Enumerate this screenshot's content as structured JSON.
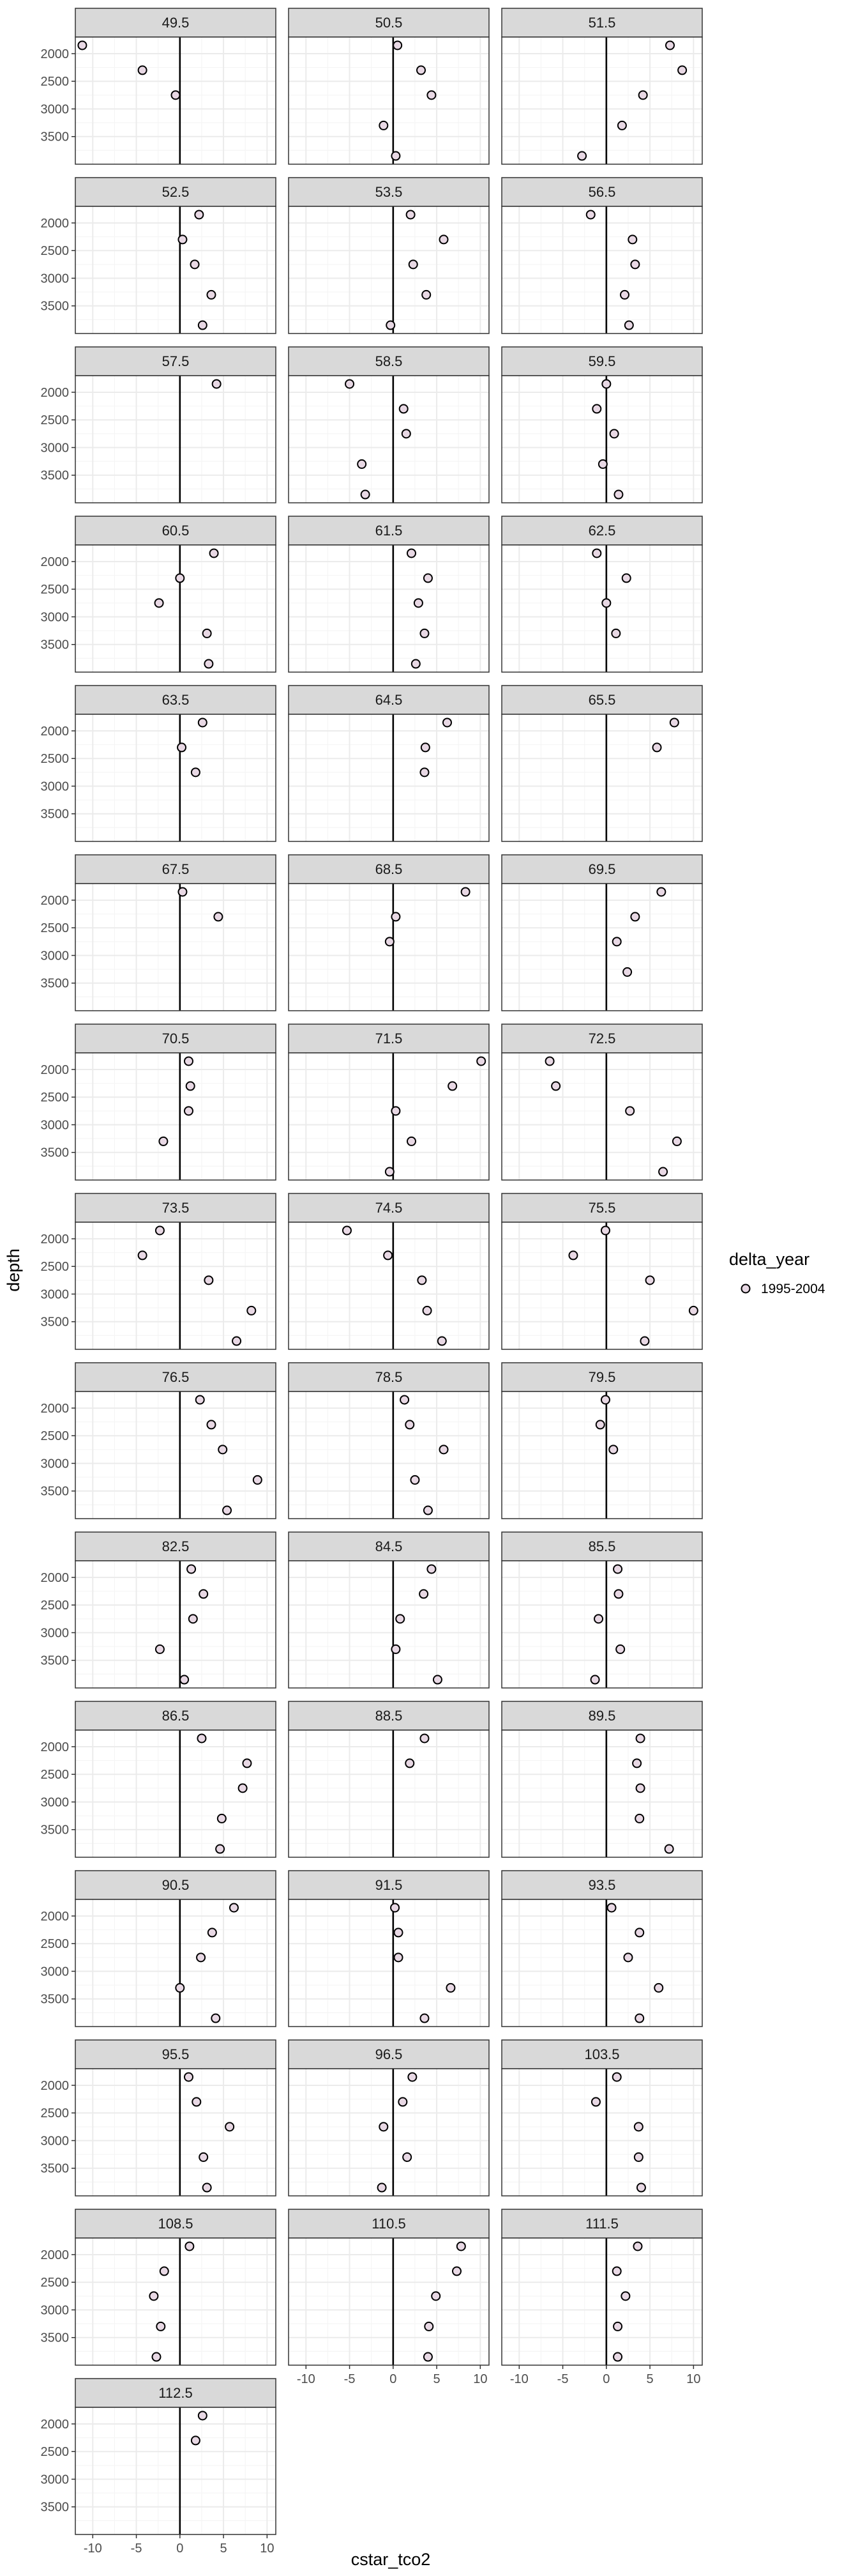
{
  "chart_data": {
    "type": "scatter",
    "facet_by": "lat",
    "xlabel": "cstar_tco2",
    "ylabel": "depth",
    "xlim": [
      -12,
      11
    ],
    "ylim": [
      4000,
      1700
    ],
    "x_ticks": [
      -10,
      -5,
      0,
      5,
      10
    ],
    "y_ticks": [
      2000,
      2500,
      3000,
      3500
    ],
    "vline_x": 0,
    "grid": true,
    "legend": {
      "title": "delta_year",
      "entries": [
        "1995-2004"
      ],
      "placement": "right"
    },
    "colors": {
      "point_edge": "#000000",
      "point_fill": "#e8d8e4",
      "strip_bg": "#d9d9d9",
      "panel_border": "#333333",
      "grid_major": "#ebebeb",
      "grid_minor": "#f5f5f5"
    },
    "panels": [
      {
        "label": "49.5",
        "points": [
          [
            -11.2,
            1850
          ],
          [
            -4.3,
            2300
          ],
          [
            -0.5,
            2750
          ]
        ]
      },
      {
        "label": "50.5",
        "points": [
          [
            0.5,
            1850
          ],
          [
            3.2,
            2300
          ],
          [
            4.4,
            2750
          ],
          [
            -1.1,
            3300
          ],
          [
            0.3,
            3850
          ]
        ]
      },
      {
        "label": "51.5",
        "points": [
          [
            7.3,
            1850
          ],
          [
            8.7,
            2300
          ],
          [
            4.2,
            2750
          ],
          [
            1.8,
            3300
          ],
          [
            -2.8,
            3850
          ]
        ]
      },
      {
        "label": "52.5",
        "points": [
          [
            2.2,
            1850
          ],
          [
            0.3,
            2300
          ],
          [
            1.7,
            2750
          ],
          [
            3.6,
            3300
          ],
          [
            2.6,
            3850
          ]
        ]
      },
      {
        "label": "53.5",
        "points": [
          [
            2.0,
            1850
          ],
          [
            5.8,
            2300
          ],
          [
            2.3,
            2750
          ],
          [
            3.8,
            3300
          ],
          [
            -0.3,
            3850
          ]
        ]
      },
      {
        "label": "56.5",
        "points": [
          [
            -1.8,
            1850
          ],
          [
            3.0,
            2300
          ],
          [
            3.3,
            2750
          ],
          [
            2.1,
            3300
          ],
          [
            2.6,
            3850
          ]
        ]
      },
      {
        "label": "57.5",
        "points": [
          [
            4.2,
            1850
          ]
        ]
      },
      {
        "label": "58.5",
        "points": [
          [
            -5.0,
            1850
          ],
          [
            1.2,
            2300
          ],
          [
            1.5,
            2750
          ],
          [
            -3.6,
            3300
          ],
          [
            -3.2,
            3850
          ]
        ]
      },
      {
        "label": "59.5",
        "points": [
          [
            0.0,
            1850
          ],
          [
            -1.1,
            2300
          ],
          [
            0.9,
            2750
          ],
          [
            -0.4,
            3300
          ],
          [
            1.4,
            3850
          ]
        ]
      },
      {
        "label": "60.5",
        "points": [
          [
            3.9,
            1850
          ],
          [
            0.0,
            2300
          ],
          [
            -2.4,
            2750
          ],
          [
            3.1,
            3300
          ],
          [
            3.3,
            3850
          ]
        ]
      },
      {
        "label": "61.5",
        "points": [
          [
            2.1,
            1850
          ],
          [
            4.0,
            2300
          ],
          [
            2.9,
            2750
          ],
          [
            3.6,
            3300
          ],
          [
            2.6,
            3850
          ]
        ]
      },
      {
        "label": "62.5",
        "points": [
          [
            -1.1,
            1850
          ],
          [
            2.3,
            2300
          ],
          [
            0.0,
            2750
          ],
          [
            1.1,
            3300
          ]
        ]
      },
      {
        "label": "63.5",
        "points": [
          [
            2.6,
            1850
          ],
          [
            0.2,
            2300
          ],
          [
            1.8,
            2750
          ]
        ]
      },
      {
        "label": "64.5",
        "points": [
          [
            6.2,
            1850
          ],
          [
            3.7,
            2300
          ],
          [
            3.6,
            2750
          ]
        ]
      },
      {
        "label": "65.5",
        "points": [
          [
            7.8,
            1850
          ],
          [
            5.8,
            2300
          ]
        ]
      },
      {
        "label": "67.5",
        "points": [
          [
            0.3,
            1850
          ],
          [
            4.4,
            2300
          ]
        ]
      },
      {
        "label": "68.5",
        "points": [
          [
            8.3,
            1850
          ],
          [
            0.3,
            2300
          ],
          [
            -0.4,
            2750
          ]
        ]
      },
      {
        "label": "69.5",
        "points": [
          [
            6.3,
            1850
          ],
          [
            3.3,
            2300
          ],
          [
            1.2,
            2750
          ],
          [
            2.4,
            3300
          ]
        ]
      },
      {
        "label": "70.5",
        "points": [
          [
            1.0,
            1850
          ],
          [
            1.2,
            2300
          ],
          [
            1.0,
            2750
          ],
          [
            -1.9,
            3300
          ]
        ]
      },
      {
        "label": "71.5",
        "points": [
          [
            10.1,
            1850
          ],
          [
            6.8,
            2300
          ],
          [
            0.3,
            2750
          ],
          [
            2.1,
            3300
          ],
          [
            -0.4,
            3850
          ]
        ]
      },
      {
        "label": "72.5",
        "points": [
          [
            -6.5,
            1850
          ],
          [
            -5.8,
            2300
          ],
          [
            2.7,
            2750
          ],
          [
            8.1,
            3300
          ],
          [
            6.5,
            3850
          ]
        ]
      },
      {
        "label": "73.5",
        "points": [
          [
            -2.3,
            1850
          ],
          [
            -4.3,
            2300
          ],
          [
            3.3,
            2750
          ],
          [
            8.2,
            3300
          ],
          [
            6.5,
            3850
          ]
        ]
      },
      {
        "label": "74.5",
        "points": [
          [
            -5.3,
            1850
          ],
          [
            -0.6,
            2300
          ],
          [
            3.3,
            2750
          ],
          [
            3.9,
            3300
          ],
          [
            5.6,
            3850
          ]
        ]
      },
      {
        "label": "75.5",
        "points": [
          [
            -0.1,
            1850
          ],
          [
            -3.8,
            2300
          ],
          [
            5.0,
            2750
          ],
          [
            10.0,
            3300
          ],
          [
            4.4,
            3850
          ]
        ]
      },
      {
        "label": "76.5",
        "points": [
          [
            2.3,
            1850
          ],
          [
            3.6,
            2300
          ],
          [
            4.9,
            2750
          ],
          [
            8.9,
            3300
          ],
          [
            5.4,
            3850
          ]
        ]
      },
      {
        "label": "78.5",
        "points": [
          [
            1.3,
            1850
          ],
          [
            1.9,
            2300
          ],
          [
            5.8,
            2750
          ],
          [
            2.5,
            3300
          ],
          [
            4.0,
            3850
          ]
        ]
      },
      {
        "label": "79.5",
        "points": [
          [
            -0.1,
            1850
          ],
          [
            -0.7,
            2300
          ],
          [
            0.8,
            2750
          ]
        ]
      },
      {
        "label": "82.5",
        "points": [
          [
            1.3,
            1850
          ],
          [
            2.7,
            2300
          ],
          [
            1.5,
            2750
          ],
          [
            -2.3,
            3300
          ],
          [
            0.5,
            3850
          ]
        ]
      },
      {
        "label": "84.5",
        "points": [
          [
            4.4,
            1850
          ],
          [
            3.5,
            2300
          ],
          [
            0.8,
            2750
          ],
          [
            0.3,
            3300
          ],
          [
            5.1,
            3850
          ]
        ]
      },
      {
        "label": "85.5",
        "points": [
          [
            1.3,
            1850
          ],
          [
            1.4,
            2300
          ],
          [
            -0.9,
            2750
          ],
          [
            1.6,
            3300
          ],
          [
            -1.3,
            3850
          ]
        ]
      },
      {
        "label": "86.5",
        "points": [
          [
            2.5,
            1850
          ],
          [
            7.7,
            2300
          ],
          [
            7.2,
            2750
          ],
          [
            4.8,
            3300
          ],
          [
            4.6,
            3850
          ]
        ]
      },
      {
        "label": "88.5",
        "points": [
          [
            3.6,
            1850
          ],
          [
            1.9,
            2300
          ]
        ]
      },
      {
        "label": "89.5",
        "points": [
          [
            3.9,
            1850
          ],
          [
            3.5,
            2300
          ],
          [
            3.9,
            2750
          ],
          [
            3.8,
            3300
          ],
          [
            7.2,
            3850
          ]
        ]
      },
      {
        "label": "90.5",
        "points": [
          [
            6.2,
            1850
          ],
          [
            3.7,
            2300
          ],
          [
            2.4,
            2750
          ],
          [
            0.0,
            3300
          ],
          [
            4.1,
            3850
          ]
        ]
      },
      {
        "label": "91.5",
        "points": [
          [
            0.2,
            1850
          ],
          [
            0.6,
            2300
          ],
          [
            0.6,
            2750
          ],
          [
            6.6,
            3300
          ],
          [
            3.6,
            3850
          ]
        ]
      },
      {
        "label": "93.5",
        "points": [
          [
            0.6,
            1850
          ],
          [
            3.8,
            2300
          ],
          [
            2.5,
            2750
          ],
          [
            6.0,
            3300
          ],
          [
            3.8,
            3850
          ]
        ]
      },
      {
        "label": "95.5",
        "points": [
          [
            1.0,
            1850
          ],
          [
            1.9,
            2300
          ],
          [
            5.7,
            2750
          ],
          [
            2.7,
            3300
          ],
          [
            3.1,
            3850
          ]
        ]
      },
      {
        "label": "96.5",
        "points": [
          [
            2.2,
            1850
          ],
          [
            1.1,
            2300
          ],
          [
            -1.1,
            2750
          ],
          [
            1.6,
            3300
          ],
          [
            -1.3,
            3850
          ]
        ]
      },
      {
        "label": "103.5",
        "points": [
          [
            1.2,
            1850
          ],
          [
            -1.2,
            2300
          ],
          [
            3.7,
            2750
          ],
          [
            3.7,
            3300
          ],
          [
            4.0,
            3850
          ]
        ]
      },
      {
        "label": "108.5",
        "points": [
          [
            1.1,
            1850
          ],
          [
            -1.8,
            2300
          ],
          [
            -3.0,
            2750
          ],
          [
            -2.2,
            3300
          ],
          [
            -2.7,
            3850
          ]
        ]
      },
      {
        "label": "110.5",
        "points": [
          [
            7.8,
            1850
          ],
          [
            7.3,
            2300
          ],
          [
            4.9,
            2750
          ],
          [
            4.1,
            3300
          ],
          [
            4.0,
            3850
          ]
        ]
      },
      {
        "label": "111.5",
        "points": [
          [
            3.6,
            1850
          ],
          [
            1.2,
            2300
          ],
          [
            2.2,
            2750
          ],
          [
            1.3,
            3300
          ],
          [
            1.3,
            3850
          ]
        ]
      },
      {
        "label": "112.5",
        "points": [
          [
            2.6,
            1850
          ],
          [
            1.8,
            2300
          ]
        ]
      }
    ]
  }
}
